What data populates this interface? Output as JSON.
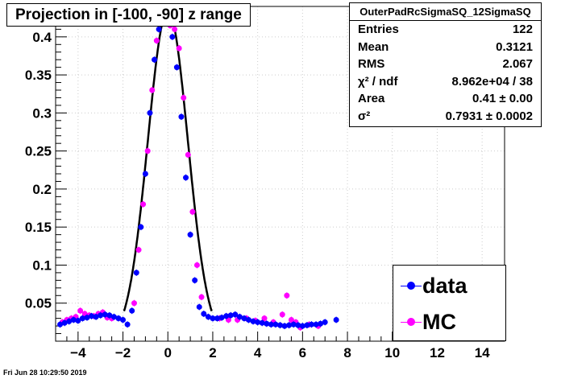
{
  "title": "Projection in [-100, -90] z range",
  "stats": {
    "name": "OuterPadRcSigmaSQ_12SigmaSQ",
    "rows": [
      {
        "key": "Entries",
        "value": "122"
      },
      {
        "key": "Mean",
        "value": "0.3121"
      },
      {
        "key": "RMS",
        "value": "2.067"
      },
      {
        "key": "χ² / ndf",
        "value": "8.962e+04 / 38"
      },
      {
        "key": "Area",
        "value": "0.41 ± 0.00"
      },
      {
        "key": "σ²",
        "value": "0.7931 ± 0.0002"
      }
    ]
  },
  "legend": [
    {
      "label": "data",
      "color": "#0000ff"
    },
    {
      "label": "MC",
      "color": "#ff00ff"
    }
  ],
  "timestamp": "Fri Jun 28 10:29:50 2019",
  "chart_data": {
    "type": "scatter",
    "xlim": [
      -5,
      15
    ],
    "ylim": [
      0,
      0.44
    ],
    "x_ticks": [
      -4,
      -2,
      0,
      2,
      4,
      6,
      8,
      10,
      12,
      14
    ],
    "y_ticks": [
      0.05,
      0.1,
      0.15,
      0.2,
      0.25,
      0.3,
      0.35,
      0.4
    ],
    "grid": true,
    "series": [
      {
        "name": "data",
        "color": "#0000ff",
        "x": [
          -4.8,
          -4.6,
          -4.4,
          -4.2,
          -4.0,
          -3.8,
          -3.6,
          -3.4,
          -3.2,
          -3.0,
          -2.8,
          -2.6,
          -2.4,
          -2.2,
          -2.0,
          -1.8,
          -1.6,
          -1.4,
          -1.2,
          -1.0,
          -0.8,
          -0.6,
          -0.4,
          -0.2,
          0.0,
          0.2,
          0.4,
          0.6,
          0.8,
          1.0,
          1.2,
          1.4,
          1.6,
          1.8,
          2.0,
          2.2,
          2.4,
          2.6,
          2.8,
          3.0,
          3.2,
          3.4,
          3.6,
          3.8,
          4.0,
          4.2,
          4.4,
          4.6,
          4.8,
          5.0,
          5.2,
          5.4,
          5.6,
          5.8,
          6.0,
          6.2,
          6.4,
          6.6,
          6.8,
          7.0,
          7.5
        ],
        "y": [
          0.022,
          0.024,
          0.026,
          0.028,
          0.027,
          0.03,
          0.031,
          0.033,
          0.032,
          0.034,
          0.035,
          0.034,
          0.032,
          0.03,
          0.028,
          0.022,
          0.04,
          0.09,
          0.15,
          0.22,
          0.3,
          0.37,
          0.41,
          0.43,
          0.425,
          0.4,
          0.36,
          0.295,
          0.215,
          0.14,
          0.08,
          0.045,
          0.036,
          0.032,
          0.03,
          0.03,
          0.031,
          0.033,
          0.034,
          0.035,
          0.032,
          0.03,
          0.028,
          0.026,
          0.025,
          0.024,
          0.023,
          0.022,
          0.022,
          0.021,
          0.02,
          0.021,
          0.022,
          0.021,
          0.02,
          0.021,
          0.022,
          0.022,
          0.023,
          0.025,
          0.028
        ]
      },
      {
        "name": "MC",
        "color": "#ff00ff",
        "x": [
          -4.7,
          -4.5,
          -4.3,
          -4.1,
          -3.9,
          -3.7,
          -3.5,
          -3.3,
          -3.1,
          -2.9,
          -2.7,
          -2.5,
          -1.5,
          -1.3,
          -1.1,
          -0.9,
          -0.7,
          -0.5,
          -0.3,
          -0.1,
          0.1,
          0.3,
          0.5,
          0.7,
          0.9,
          1.1,
          1.3,
          1.5,
          2.3,
          2.7,
          3.1,
          3.5,
          3.9,
          4.3,
          4.7,
          5.1,
          5.3,
          5.5,
          5.7,
          5.9,
          6.3,
          6.7
        ],
        "y": [
          0.025,
          0.028,
          0.03,
          0.032,
          0.04,
          0.036,
          0.034,
          0.033,
          0.036,
          0.038,
          0.031,
          0.03,
          0.05,
          0.12,
          0.18,
          0.25,
          0.33,
          0.395,
          0.425,
          0.42,
          0.415,
          0.41,
          0.385,
          0.32,
          0.245,
          0.17,
          0.1,
          0.058,
          0.03,
          0.028,
          0.028,
          0.03,
          0.027,
          0.03,
          0.025,
          0.035,
          0.06,
          0.028,
          0.025,
          0.018,
          0.022,
          0.02
        ]
      }
    ],
    "fit": {
      "type": "gaussian",
      "mean": 0.0,
      "sigma_squared": 0.7931,
      "amplitude": 0.435,
      "x_range": [
        -1.95,
        1.95
      ]
    }
  }
}
